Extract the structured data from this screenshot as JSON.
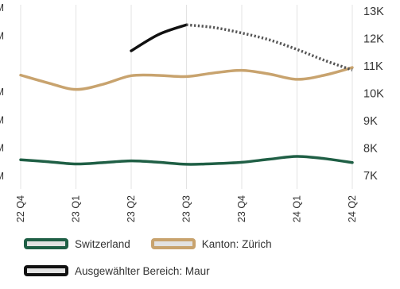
{
  "chart_data": {
    "type": "line",
    "categories": [
      "22 Q4",
      "23 Q1",
      "23 Q2",
      "23 Q3",
      "23 Q4",
      "24 Q1",
      "24 Q2"
    ],
    "right_axis": {
      "ticks": [
        "7K",
        "8K",
        "9K",
        "10K",
        "11K",
        "12K",
        "13K"
      ],
      "ylim": [
        7000,
        13000
      ]
    },
    "left_axis": {
      "ticks": [
        "M",
        "M",
        "M",
        "M",
        "M",
        "M"
      ]
    },
    "grid": "vertical",
    "series": [
      {
        "name": "Switzerland",
        "axis": "left",
        "color": "#1f5f45",
        "x": [
          0,
          0.5,
          1,
          1.5,
          2,
          2.5,
          3,
          3.5,
          4,
          4.5,
          5,
          5.5,
          6
        ],
        "values": [
          0.56,
          0.49,
          0.41,
          0.46,
          0.52,
          0.47,
          0.4,
          0.42,
          0.47,
          0.58,
          0.68,
          0.6,
          0.46
        ]
      },
      {
        "name": "Kanton: Zürich",
        "axis": "left",
        "color": "#c8a36e",
        "x": [
          0,
          0.5,
          1,
          1.5,
          2,
          2.5,
          3,
          3.5,
          4,
          4.5,
          5,
          5.5,
          6
        ],
        "values": [
          3.58,
          3.3,
          3.07,
          3.26,
          3.56,
          3.57,
          3.53,
          3.66,
          3.75,
          3.62,
          3.43,
          3.58,
          3.85
        ]
      },
      {
        "name": "Ausgewählter Bereich: Maur",
        "axis": "right",
        "color": "#111111",
        "solid": {
          "x": [
            2,
            2.5,
            3
          ],
          "values": [
            11550,
            12150,
            12500
          ]
        },
        "dotted": {
          "x": [
            3,
            3.5,
            4,
            4.5,
            5,
            5.5,
            6
          ],
          "values": [
            12500,
            12400,
            12200,
            11950,
            11600,
            11200,
            10850
          ]
        }
      }
    ],
    "legend_position": "bottom"
  },
  "legend": {
    "items": [
      {
        "label": "Switzerland",
        "color": "#1f5f45"
      },
      {
        "label": "Kanton: Zürich",
        "color": "#c8a36e"
      },
      {
        "label": "Ausgewählter Bereich: Maur",
        "color": "#111111"
      }
    ]
  }
}
